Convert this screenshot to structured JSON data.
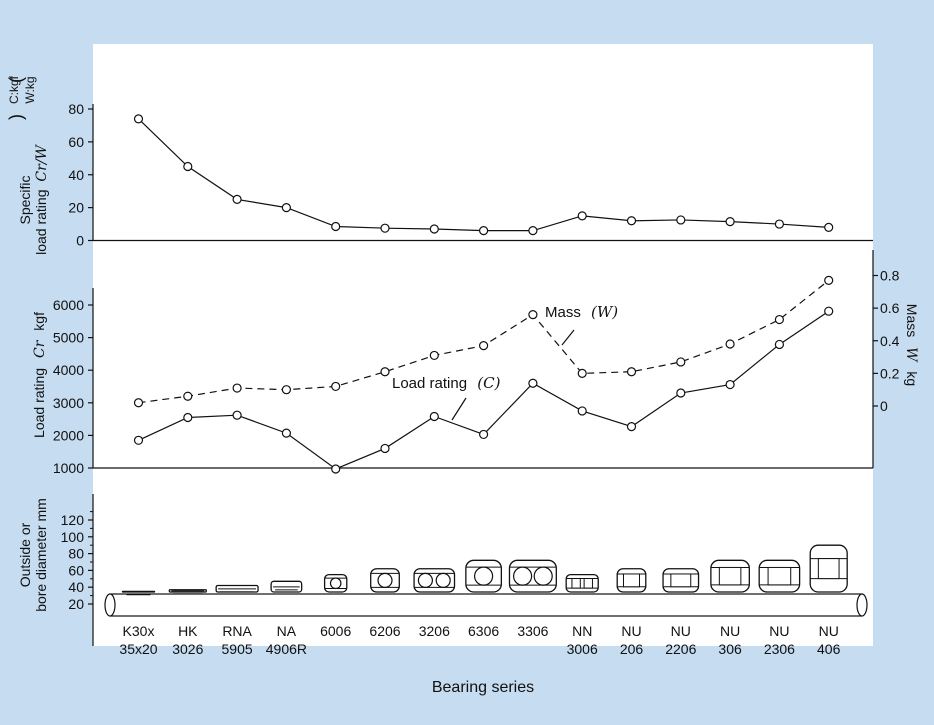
{
  "colors": {
    "background": "#c6dcf0",
    "panel": "#ffffff",
    "ink": "#111111"
  },
  "x_axis": {
    "title": "Bearing series",
    "categories": [
      [
        "K30x",
        "35x20"
      ],
      [
        "HK",
        "3026"
      ],
      [
        "RNA",
        "5905"
      ],
      [
        "NA",
        "4906R"
      ],
      [
        "6006",
        ""
      ],
      [
        "6206",
        ""
      ],
      [
        "3206",
        ""
      ],
      [
        "6306",
        ""
      ],
      [
        "3306",
        ""
      ],
      [
        "NN",
        "3006"
      ],
      [
        "NU",
        "206"
      ],
      [
        "NU",
        "2206"
      ],
      [
        "NU",
        "306"
      ],
      [
        "NU",
        "2306"
      ],
      [
        "NU",
        "406"
      ]
    ]
  },
  "chart_data": [
    {
      "type": "line",
      "name": "specific-load-rating",
      "ylabel_lines": [
        "Specific",
        "load rating"
      ],
      "ylabel_symbol": "Cr/W",
      "unit_note": [
        "C:kgf",
        "W:kg"
      ],
      "ylim": [
        0,
        80
      ],
      "yticks": [
        0,
        20,
        40,
        60,
        80
      ],
      "series": [
        {
          "values": [
            74,
            45,
            25,
            20,
            8.5,
            7.5,
            7,
            6,
            6,
            15,
            12,
            12.5,
            11.5,
            10,
            8
          ]
        }
      ]
    },
    {
      "type": "line",
      "name": "load-rating-and-mass",
      "left_axis": {
        "label": "Load rating",
        "symbol": "Cr",
        "unit": "kgf",
        "ylim": [
          1000,
          6000
        ],
        "yticks": [
          1000,
          2000,
          3000,
          4000,
          5000,
          6000
        ]
      },
      "right_axis": {
        "label": "Mass",
        "symbol": "W",
        "unit": "kg",
        "ylim": [
          0,
          0.8
        ],
        "yticks": [
          "0",
          "0.2",
          "0.4",
          "0.6",
          "0.8"
        ]
      },
      "series": [
        {
          "name": "Load rating",
          "symbol": "(C)",
          "axis": "left",
          "style": "solid",
          "values": [
            1850,
            2550,
            2620,
            2070,
            970,
            1600,
            2580,
            2030,
            3600,
            2750,
            2270,
            3300,
            3560,
            4790,
            5810
          ]
        },
        {
          "name": "Mass",
          "symbol": "(W)",
          "axis": "right",
          "style": "dashed",
          "values": [
            0.02,
            0.06,
            0.11,
            0.1,
            0.12,
            0.21,
            0.31,
            0.37,
            0.56,
            0.2,
            0.21,
            0.27,
            0.38,
            0.53,
            0.77
          ]
        }
      ]
    },
    {
      "type": "other",
      "name": "bearing-dimensions",
      "ylabel_lines": [
        "Outside or",
        "bore diameter  mm"
      ],
      "ylim": [
        20,
        130
      ],
      "yticks": [
        20,
        40,
        60,
        80,
        100,
        120
      ]
    }
  ],
  "bearing_icons": [
    {
      "outer": 35,
      "bore": 30,
      "kind": "needle",
      "width": 0.65
    },
    {
      "outer": 37,
      "bore": 30,
      "kind": "needle",
      "width": 0.75
    },
    {
      "outer": 42,
      "bore": 30,
      "kind": "needle",
      "width": 0.85
    },
    {
      "outer": 47,
      "bore": 30,
      "kind": "needle",
      "width": 0.62
    },
    {
      "outer": 55,
      "bore": 30,
      "kind": "ball",
      "width": 0.45
    },
    {
      "outer": 62,
      "bore": 30,
      "kind": "ball",
      "width": 0.58
    },
    {
      "outer": 62,
      "bore": 30,
      "kind": "ball2",
      "width": 0.82
    },
    {
      "outer": 72,
      "bore": 30,
      "kind": "ball",
      "width": 0.72
    },
    {
      "outer": 72,
      "bore": 30,
      "kind": "ball2",
      "width": 0.95
    },
    {
      "outer": 55,
      "bore": 30,
      "kind": "roller2",
      "width": 0.65
    },
    {
      "outer": 62,
      "bore": 30,
      "kind": "roller",
      "width": 0.58
    },
    {
      "outer": 62,
      "bore": 30,
      "kind": "roller",
      "width": 0.72
    },
    {
      "outer": 72,
      "bore": 30,
      "kind": "roller",
      "width": 0.78
    },
    {
      "outer": 72,
      "bore": 30,
      "kind": "roller",
      "width": 0.82
    },
    {
      "outer": 90,
      "bore": 30,
      "kind": "roller",
      "width": 0.75
    }
  ]
}
